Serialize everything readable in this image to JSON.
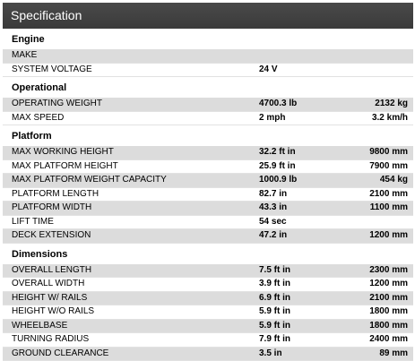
{
  "header": {
    "title": "Specification"
  },
  "sections": [
    {
      "title": "Engine",
      "rows": [
        {
          "label": "MAKE",
          "imperial": "",
          "metric": ""
        },
        {
          "label": "SYSTEM VOLTAGE",
          "imperial": "24 V",
          "metric": ""
        }
      ]
    },
    {
      "title": "Operational",
      "rows": [
        {
          "label": "OPERATING WEIGHT",
          "imperial": "4700.3 lb",
          "metric": "2132 kg"
        },
        {
          "label": "MAX SPEED",
          "imperial": "2 mph",
          "metric": "3.2 km/h"
        }
      ]
    },
    {
      "title": "Platform",
      "rows": [
        {
          "label": "MAX WORKING HEIGHT",
          "imperial": "32.2 ft in",
          "metric": "9800 mm"
        },
        {
          "label": "MAX PLATFORM HEIGHT",
          "imperial": "25.9 ft in",
          "metric": "7900 mm"
        },
        {
          "label": "MAX PLATFORM WEIGHT CAPACITY",
          "imperial": "1000.9 lb",
          "metric": "454 kg"
        },
        {
          "label": "PLATFORM LENGTH",
          "imperial": "82.7 in",
          "metric": "2100 mm"
        },
        {
          "label": "PLATFORM WIDTH",
          "imperial": "43.3 in",
          "metric": "1100 mm"
        },
        {
          "label": "LIFT TIME",
          "imperial": "54 sec",
          "metric": ""
        },
        {
          "label": "DECK EXTENSION",
          "imperial": "47.2 in",
          "metric": "1200 mm"
        }
      ]
    },
    {
      "title": "Dimensions",
      "rows": [
        {
          "label": "OVERALL LENGTH",
          "imperial": "7.5 ft in",
          "metric": "2300 mm"
        },
        {
          "label": "OVERALL WIDTH",
          "imperial": "3.9 ft in",
          "metric": "1200 mm"
        },
        {
          "label": "HEIGHT W/ RAILS",
          "imperial": "6.9 ft in",
          "metric": "2100 mm"
        },
        {
          "label": "HEIGHT W/O RAILS",
          "imperial": "5.9 ft in",
          "metric": "1800 mm"
        },
        {
          "label": "WHEELBASE",
          "imperial": "5.9 ft in",
          "metric": "1800 mm"
        },
        {
          "label": "TURNING RADIUS",
          "imperial": "7.9 ft in",
          "metric": "2400 mm"
        },
        {
          "label": "GROUND CLEARANCE",
          "imperial": "3.5 in",
          "metric": "89 mm"
        }
      ]
    }
  ]
}
